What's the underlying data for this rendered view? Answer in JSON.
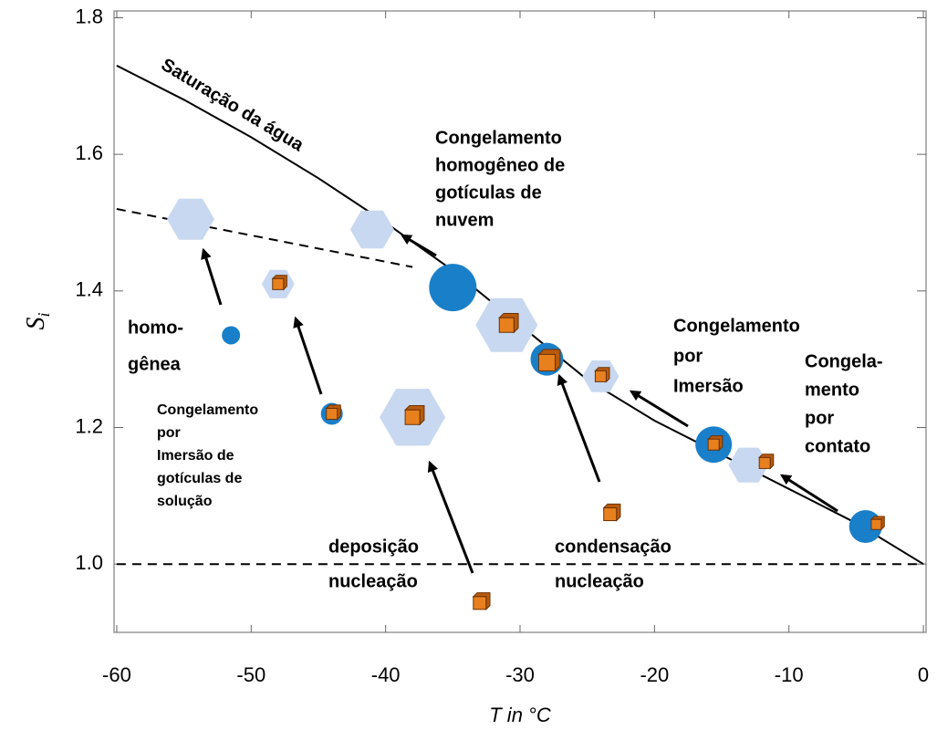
{
  "chart_data": {
    "type": "line",
    "x_label": "T in °C",
    "y_label": {
      "main": "S",
      "sub": "i"
    },
    "xlim": [
      -60.2,
      0.2
    ],
    "ylim": [
      0.9,
      1.81
    ],
    "xticks": [
      -60,
      -50,
      -40,
      -30,
      -20,
      -10,
      0
    ],
    "yticks": [
      {
        "value": 1,
        "label": "1.0"
      },
      1.2,
      1.4,
      1.6,
      1.8
    ],
    "series": [
      {
        "name": "Saturação da água",
        "color": "#000000",
        "style": "solid",
        "x": [
          -60,
          -55,
          -50,
          -45,
          -40,
          -35,
          -30,
          -25,
          -20,
          -15,
          -10,
          -5,
          0
        ],
        "values": [
          1.73,
          1.68,
          1.625,
          1.565,
          1.5,
          1.43,
          1.35,
          1.27,
          1.21,
          1.16,
          1.11,
          1.06,
          1.0
        ]
      },
      {
        "color": "#000000",
        "style": "dashed",
        "x": [
          -60,
          -38
        ],
        "values": [
          1.52,
          1.435
        ]
      },
      {
        "color": "#000000",
        "style": "dashed",
        "x": [
          -60,
          0
        ],
        "values": [
          1.0,
          1.0
        ]
      }
    ],
    "markers": {
      "crystals": {
        "color": "#c8d8f0",
        "x": [
          -54.5,
          -41,
          -48,
          -31,
          -38,
          -24,
          -13
        ],
        "y": [
          1.505,
          1.49,
          1.41,
          1.35,
          1.215,
          1.275,
          1.145
        ]
      },
      "droplets": {
        "color": "#1a7fc9",
        "x": [
          -51.5,
          -35,
          -44,
          -28,
          -15.6,
          -4.3
        ],
        "y": [
          1.335,
          1.405,
          1.22,
          1.3,
          1.175,
          1.055
        ]
      },
      "particles": {
        "color": "#e8801e",
        "x": [
          -48,
          -31,
          -28,
          -44,
          -38,
          -24,
          -15.6,
          -11.8,
          -3.5,
          -23.3,
          -33
        ],
        "y": [
          1.41,
          1.35,
          1.295,
          1.22,
          1.215,
          1.275,
          1.175,
          1.148,
          1.058,
          1.073,
          0.943
        ]
      }
    },
    "annotations": [
      {
        "lines": [
          "Congelamento",
          "homogêneo de",
          "gotículas de",
          "nuvem"
        ]
      },
      {
        "lines": [
          "homo-",
          "gênea"
        ]
      },
      {
        "lines": [
          "Congelamento",
          "por",
          "Imersão de",
          "gotículas de",
          "solução"
        ]
      },
      {
        "lines": [
          "deposição",
          "nucleação"
        ]
      },
      {
        "lines": [
          "condensação",
          "nucleação"
        ]
      },
      {
        "lines": [
          "Congelamento",
          "por",
          "Imersão"
        ]
      },
      {
        "lines": [
          "Congela-",
          "mento",
          "por",
          "contato"
        ]
      }
    ]
  }
}
